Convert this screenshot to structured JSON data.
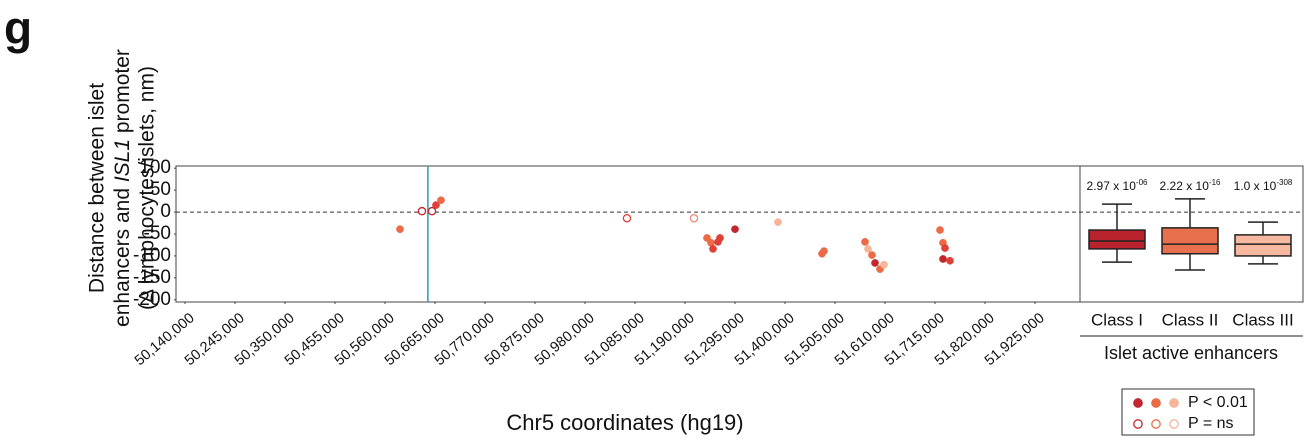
{
  "panel_label": "g",
  "chart_data": [
    {
      "type": "scatter",
      "ylabel_lines": [
        "Distance between islet",
        [
          "enhancers and ",
          "ISL1",
          " promoter"
        ],
        "(Δ lymphocytes/islets, nm)"
      ],
      "xlabel": "Chr5 coordinates (hg19)",
      "xlim": [
        50121100,
        52019500
      ],
      "ylim": [
        -205,
        105
      ],
      "yticks": [
        100,
        50,
        0,
        -50,
        -100,
        -150,
        -200
      ],
      "xticks": [
        {
          "value": 50140000,
          "label": "50,140,000"
        },
        {
          "value": 50245000,
          "label": "50,245,000"
        },
        {
          "value": 50350000,
          "label": "50,350,000"
        },
        {
          "value": 50455000,
          "label": "50,455,000"
        },
        {
          "value": 50560000,
          "label": "50,560,000"
        },
        {
          "value": 50665000,
          "label": "50,665,000"
        },
        {
          "value": 50770000,
          "label": "50,770,000"
        },
        {
          "value": 50875000,
          "label": "50,875,000"
        },
        {
          "value": 50980000,
          "label": "50,980,000"
        },
        {
          "value": 51085000,
          "label": "51,085,000"
        },
        {
          "value": 51190000,
          "label": "51,190,000"
        },
        {
          "value": 51295000,
          "label": "51,295,000"
        },
        {
          "value": 51400000,
          "label": "51,400,000"
        },
        {
          "value": 51505000,
          "label": "51,505,000"
        },
        {
          "value": 51610000,
          "label": "51,610,000"
        },
        {
          "value": 51715000,
          "label": "51,715,000"
        },
        {
          "value": 51820000,
          "label": "51,820,000"
        },
        {
          "value": 51925000,
          "label": "51,925,000"
        }
      ],
      "promoter_x": 50650000,
      "promoter_color": "#3b9fc7",
      "zero_line": 0,
      "palette": [
        "#c1272d",
        "#ec6a45",
        "#f6b49a"
      ],
      "series": [
        {
          "name": "P < 0.01",
          "filled": true,
          "x": [
            50591500,
            50667100,
            50677600,
            51236200,
            51244600,
            51248800,
            51259300,
            51263500,
            51295000,
            51385300,
            51477700,
            51481900,
            51568000,
            51574300,
            51582700,
            51589000,
            51599500,
            51607900,
            51725500,
            51731800,
            51736000,
            51731800,
            51746500
          ],
          "values": [
            -39,
            16,
            27,
            -59,
            -70,
            -84,
            -68,
            -59,
            -39,
            -23,
            -95,
            -89,
            -68,
            -84,
            -98,
            -116,
            -130,
            -120,
            -41,
            -70,
            -82,
            -107,
            -111
          ],
          "colors": [
            "#ec6a45",
            "#e0403a",
            "#ec6a45",
            "#ec6a45",
            "#ec6a45",
            "#e0403a",
            "#e0403a",
            "#e0403a",
            "#c1272d",
            "#f6b49a",
            "#ec6a45",
            "#ec6a45",
            "#ec6a45",
            "#f6b49a",
            "#ec6a45",
            "#c1272d",
            "#ec6a45",
            "#f6b49a",
            "#ec6a45",
            "#ec6a45",
            "#e0403a",
            "#c1272d",
            "#e0403a"
          ]
        },
        {
          "name": "P = ns",
          "filled": false,
          "x": [
            50637700,
            50658700,
            51068200,
            51208900
          ],
          "values": [
            2,
            2,
            -14,
            -14
          ],
          "colors": [
            "#c1272d",
            "#c1272d",
            "#e0403a",
            "#f08a7a"
          ]
        }
      ]
    },
    {
      "type": "box",
      "categories": [
        "Class I",
        "Class II",
        "Class III"
      ],
      "group_label": "Islet active enhancers",
      "colors": [
        "#b8232d",
        "#e8704d",
        "#f6b9a0"
      ],
      "whislo": [
        -114,
        -132,
        -118
      ],
      "q1": [
        -84,
        -95,
        -100
      ],
      "med": [
        -66,
        -73,
        -73
      ],
      "q3": [
        -41,
        -36,
        -52
      ],
      "whishi": [
        18,
        30,
        -23
      ],
      "pvalues": [
        {
          "base": "2.97 x 10",
          "exp": "-06"
        },
        {
          "base": "2.22 x 10",
          "exp": "-16"
        },
        {
          "base": "1.0 x 10",
          "exp": "-308"
        }
      ]
    }
  ]
}
